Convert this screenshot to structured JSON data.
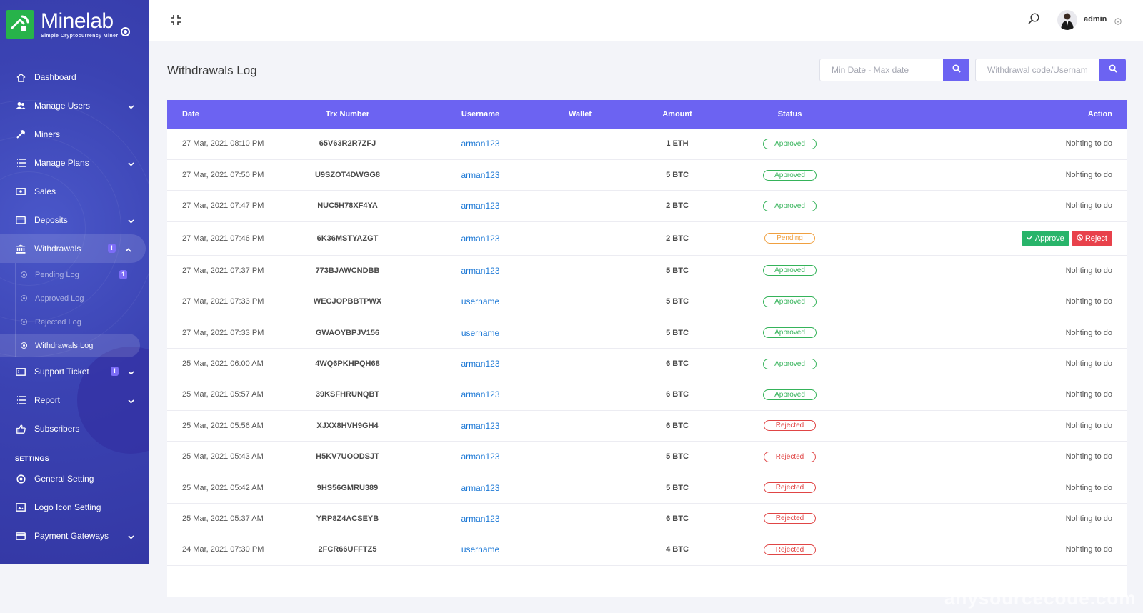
{
  "brand": {
    "name": "Minelab",
    "tagline": "Simple Cryptocurrency Miner",
    "color": "#27b34a"
  },
  "sidebar": {
    "items": [
      {
        "label": "Dashboard",
        "icon": "home-icon",
        "chevron": false
      },
      {
        "label": "Manage Users",
        "icon": "users-icon",
        "chevron": true
      },
      {
        "label": "Miners",
        "icon": "hammer-icon",
        "chevron": false
      },
      {
        "label": "Manage Plans",
        "icon": "list-icon",
        "chevron": true
      },
      {
        "label": "Sales",
        "icon": "cash-icon",
        "chevron": false
      },
      {
        "label": "Deposits",
        "icon": "wallet-icon",
        "chevron": true
      },
      {
        "label": "Withdrawals",
        "icon": "bank-icon",
        "badge": "!",
        "chevron": true,
        "active": true
      },
      {
        "label": "Support Ticket",
        "icon": "ticket-icon",
        "badge": "!",
        "chevron": true
      },
      {
        "label": "Report",
        "icon": "report-icon",
        "chevron": true
      },
      {
        "label": "Subscribers",
        "icon": "thumbs-up-icon",
        "chevron": false
      }
    ],
    "withdraw_sub": [
      {
        "label": "Pending Log",
        "badge": "1"
      },
      {
        "label": "Approved Log"
      },
      {
        "label": "Rejected Log"
      },
      {
        "label": "Withdrawals Log",
        "active": true
      }
    ],
    "settings_heading": "SETTINGS",
    "settings_items": [
      {
        "label": "General Setting",
        "icon": "gear-icon",
        "chevron": false
      },
      {
        "label": "Logo Icon Setting",
        "icon": "image-icon",
        "chevron": false
      },
      {
        "label": "Payment Gateways",
        "icon": "card-icon",
        "chevron": true
      }
    ]
  },
  "topbar": {
    "user": "admin"
  },
  "page": {
    "title": "Withdrawals Log",
    "date_placeholder": "Min Date - Max date",
    "search_placeholder": "Withdrawal code/Username"
  },
  "table": {
    "headers": {
      "date": "Date",
      "trx": "Trx Number",
      "username": "Username",
      "wallet": "Wallet",
      "amount": "Amount",
      "status": "Status",
      "action": "Action"
    },
    "rows": [
      {
        "date": "27 Mar, 2021 08:10 PM",
        "trx": "65V63R2R7ZFJ",
        "username": "arman123",
        "wallet": "",
        "amount": "1 ETH",
        "status": "Approved",
        "action": "Nohting to do"
      },
      {
        "date": "27 Mar, 2021 07:50 PM",
        "trx": "U9SZOT4DWGG8",
        "username": "arman123",
        "wallet": "",
        "amount": "5 BTC",
        "status": "Approved",
        "action": "Nohting to do"
      },
      {
        "date": "27 Mar, 2021 07:47 PM",
        "trx": "NUC5H78XF4YA",
        "username": "arman123",
        "wallet": "",
        "amount": "2 BTC",
        "status": "Approved",
        "action": "Nohting to do"
      },
      {
        "date": "27 Mar, 2021 07:46 PM",
        "trx": "6K36MSTYAZGT",
        "username": "arman123",
        "wallet": "",
        "amount": "2 BTC",
        "status": "Pending",
        "action": "",
        "approve": "Approve",
        "reject": "Reject"
      },
      {
        "date": "27 Mar, 2021 07:37 PM",
        "trx": "773BJAWCNDBB",
        "username": "arman123",
        "wallet": "",
        "amount": "5 BTC",
        "status": "Approved",
        "action": "Nohting to do"
      },
      {
        "date": "27 Mar, 2021 07:33 PM",
        "trx": "WECJOPBBTPWX",
        "username": "username",
        "wallet": "",
        "amount": "5 BTC",
        "status": "Approved",
        "action": "Nohting to do"
      },
      {
        "date": "27 Mar, 2021 07:33 PM",
        "trx": "GWAOYBPJV156",
        "username": "username",
        "wallet": "",
        "amount": "5 BTC",
        "status": "Approved",
        "action": "Nohting to do"
      },
      {
        "date": "25 Mar, 2021 06:00 AM",
        "trx": "4WQ6PKHPQH68",
        "username": "arman123",
        "wallet": "",
        "amount": "6 BTC",
        "status": "Approved",
        "action": "Nohting to do"
      },
      {
        "date": "25 Mar, 2021 05:57 AM",
        "trx": "39KSFHRUNQBT",
        "username": "arman123",
        "wallet": "",
        "amount": "6 BTC",
        "status": "Approved",
        "action": "Nohting to do"
      },
      {
        "date": "25 Mar, 2021 05:56 AM",
        "trx": "XJXX8HVH9GH4",
        "username": "arman123",
        "wallet": "",
        "amount": "6 BTC",
        "status": "Rejected",
        "action": "Nohting to do"
      },
      {
        "date": "25 Mar, 2021 05:43 AM",
        "trx": "H5KV7UOODSJT",
        "username": "arman123",
        "wallet": "",
        "amount": "5 BTC",
        "status": "Rejected",
        "action": "Nohting to do"
      },
      {
        "date": "25 Mar, 2021 05:42 AM",
        "trx": "9HS56GMRU389",
        "username": "arman123",
        "wallet": "",
        "amount": "5 BTC",
        "status": "Rejected",
        "action": "Nohting to do"
      },
      {
        "date": "25 Mar, 2021 05:37 AM",
        "trx": "YRP8Z4ACSEYB",
        "username": "arman123",
        "wallet": "",
        "amount": "6 BTC",
        "status": "Rejected",
        "action": "Nohting to do"
      },
      {
        "date": "24 Mar, 2021 07:30 PM",
        "trx": "2FCR66UFFTZ5",
        "username": "username",
        "wallet": "",
        "amount": "4 BTC",
        "status": "Rejected",
        "action": "Nohting to do"
      }
    ]
  },
  "colors": {
    "accent": "#6c63f2",
    "sidebar": "#3b43b3",
    "approved": "#35b35a",
    "pending": "#f0a040",
    "rejected": "#e04545",
    "link": "#1f7ad6"
  },
  "watermark": "anysourcecode.com"
}
